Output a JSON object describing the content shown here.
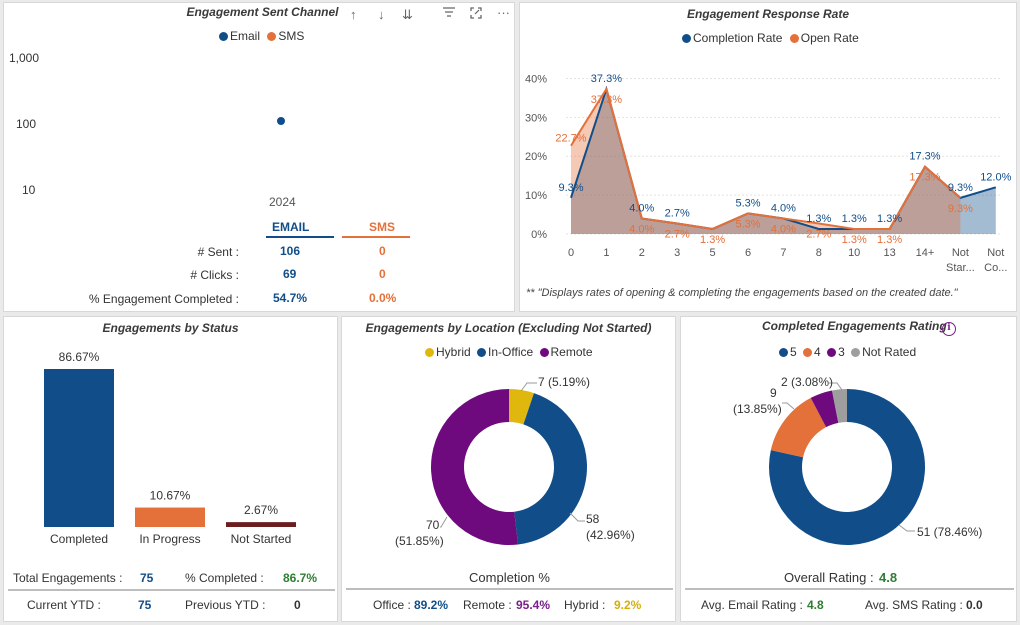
{
  "sent_channel": {
    "title": "Engagement Sent Channel",
    "legend": {
      "email": "Email",
      "sms": "SMS"
    },
    "y_ticks": [
      "1,000",
      "100",
      "10"
    ],
    "year": "2024",
    "headers": {
      "email": "EMAIL",
      "sms": "SMS"
    },
    "rows": [
      {
        "label": "# Sent :",
        "email": "106",
        "sms": "0"
      },
      {
        "label": "# Clicks :",
        "email": "69",
        "sms": "0"
      },
      {
        "label": "% Engagement Completed :",
        "email": "54.7%",
        "sms": "0.0%"
      }
    ]
  },
  "response_rate": {
    "title": "Engagement Response Rate",
    "legend": {
      "completion": "Completion Rate",
      "open": "Open Rate"
    },
    "footnote": "** \"Displays rates of opening & completing the engagements based on the created date.\""
  },
  "status": {
    "title": "Engagements by Status",
    "total_label": "Total Engagements :",
    "total_value": "75",
    "pct_label": "% Completed :",
    "pct_value": "86.7%",
    "current_ytd_label": "Current YTD :",
    "current_ytd_value": "75",
    "prev_ytd_label": "Previous YTD :",
    "prev_ytd_value": "0"
  },
  "location": {
    "title": "Engagements by Location (Excluding Not Started)",
    "legend": {
      "hybrid": "Hybrid",
      "inoffice": "In-Office",
      "remote": "Remote"
    },
    "labels": {
      "hybrid": "7 (5.19%)",
      "inoffice_count": "58",
      "inoffice_pct": "(42.96%)",
      "remote_count": "70",
      "remote_pct": "(51.85%)"
    },
    "completion_title": "Completion %",
    "office_label": "Office :",
    "office_value": "89.2%",
    "remote_label": "Remote :",
    "remote_value": "95.4%",
    "hybrid_label": "Hybrid :",
    "hybrid_value": "9.2%"
  },
  "rating": {
    "title": "Completed Engagements Rating",
    "info_icon": "i",
    "legend": {
      "five": "5",
      "four": "4",
      "three": "3",
      "not_rated": "Not Rated"
    },
    "labels": {
      "not_rated": "2 (3.08%)",
      "four_count": "9",
      "four_pct": "(13.85%)",
      "five": "51 (78.46%)"
    },
    "overall_label": "Overall Rating :",
    "overall_value": "4.8",
    "email_label": "Avg. Email Rating :",
    "email_value": "4.8",
    "sms_label": "Avg. SMS Rating :",
    "sms_value": "0.0"
  },
  "colors": {
    "blue": "#114E89",
    "orange": "#E4703A",
    "purple": "#6E0A7E",
    "yellow": "#E0B70D",
    "grey": "#9E9E9E",
    "dark_red": "#6B1E1E"
  },
  "chart_data": [
    {
      "type": "scatter",
      "title": "Engagement Sent Channel",
      "x": [
        "2024"
      ],
      "yscale": "log",
      "y_ticks": [
        "1,000",
        "100",
        "10"
      ],
      "series": [
        {
          "name": "Email",
          "values": [
            106
          ]
        },
        {
          "name": "SMS",
          "values": [
            0
          ]
        }
      ]
    },
    {
      "type": "area",
      "title": "Engagement Response Rate",
      "categories": [
        "0",
        "1",
        "2",
        "3",
        "5",
        "6",
        "7",
        "8",
        "10",
        "13",
        "14+",
        "Not Star...",
        "Not Co..."
      ],
      "ylim": [
        0,
        45
      ],
      "y_ticks": [
        "0%",
        "10%",
        "20%",
        "30%",
        "40%"
      ],
      "series": [
        {
          "name": "Completion Rate",
          "values": [
            9.3,
            37.3,
            4.0,
            2.7,
            1.3,
            5.3,
            4.0,
            1.3,
            1.3,
            1.3,
            17.3,
            9.3,
            12.0
          ],
          "labels": [
            "9.3%",
            "37.3%",
            "4.0%",
            "2.7%",
            "",
            "5.3%",
            "4.0%",
            "1.3%",
            "1.3%",
            "1.3%",
            "17.3%",
            "9.3%",
            "12.0%"
          ]
        },
        {
          "name": "Open Rate",
          "values": [
            22.7,
            37.3,
            4.0,
            2.7,
            1.3,
            5.3,
            4.0,
            2.7,
            1.3,
            1.3,
            17.3,
            9.3,
            null
          ],
          "labels": [
            "22.7%",
            "37.3%",
            "4.0%",
            "2.7%",
            "1.3%",
            "5.3%",
            "4.0%",
            "2.7%",
            "1.3%",
            "1.3%",
            "17.3%",
            "9.3%",
            ""
          ]
        }
      ]
    },
    {
      "type": "bar",
      "title": "Engagements by Status",
      "categories": [
        "Completed",
        "In Progress",
        "Not Started"
      ],
      "values": [
        86.67,
        10.67,
        2.67
      ],
      "labels": [
        "86.67%",
        "10.67%",
        "2.67%"
      ],
      "ylim": [
        0,
        100
      ]
    },
    {
      "type": "pie",
      "title": "Engagements by Location (Excluding Not Started)",
      "categories": [
        "Hybrid",
        "In-Office",
        "Remote"
      ],
      "values": [
        7,
        58,
        70
      ],
      "percents": [
        5.19,
        42.96,
        51.85
      ]
    },
    {
      "type": "pie",
      "title": "Completed Engagements Rating",
      "categories": [
        "5",
        "4",
        "3",
        "Not Rated"
      ],
      "values": [
        51,
        9,
        3,
        2
      ],
      "percents": [
        78.46,
        13.85,
        4.62,
        3.08
      ]
    }
  ]
}
